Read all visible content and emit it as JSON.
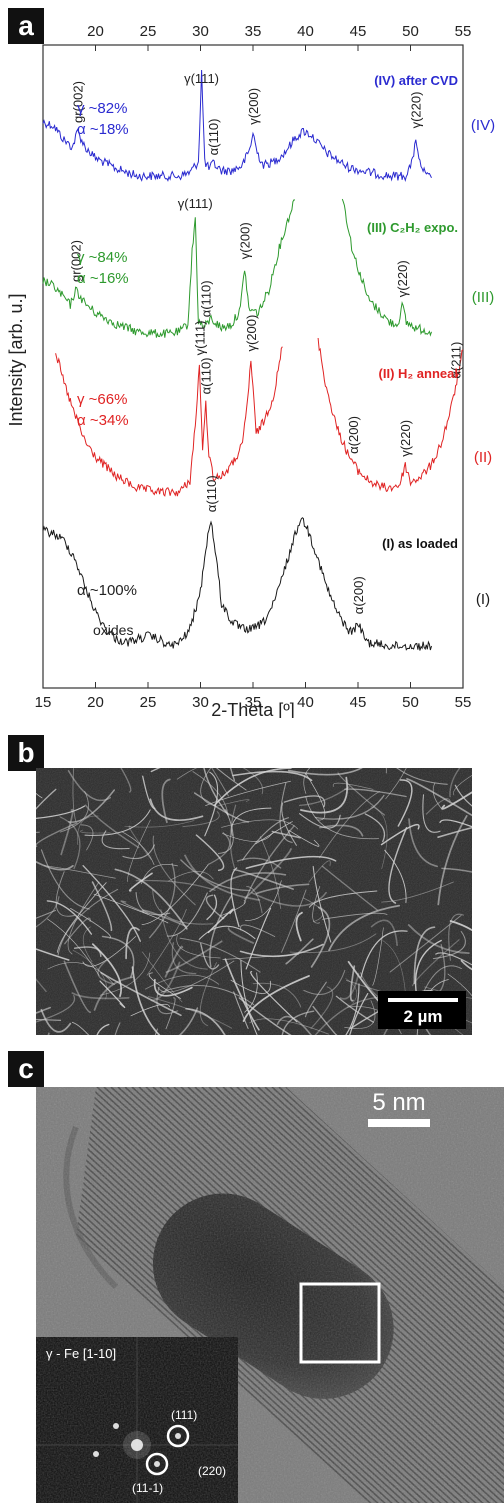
{
  "panels": {
    "a": "a",
    "b": "b",
    "c": "c"
  },
  "chart_data": {
    "type": "line",
    "xlabel": "2-Theta [º]",
    "ylabel": "Intensity [arb. u.]",
    "xlim": [
      15,
      55
    ],
    "xticks": [
      "15",
      "20",
      "25",
      "30",
      "35",
      "40",
      "45",
      "50",
      "55"
    ],
    "grid": false,
    "series": [
      {
        "name": "(IV) after CVD",
        "roman": "(IV)",
        "color": "#2b2bd0",
        "phase_lines": [
          "γ ~82%",
          "α ~18%"
        ],
        "x": [
          15,
          16,
          17,
          17.8,
          18.3,
          19,
          20,
          22,
          24,
          26,
          28,
          29,
          29.8,
          30.1,
          30.4,
          30.8,
          31.2,
          32,
          33,
          34,
          34.7,
          35,
          35.4,
          36,
          37,
          38,
          39,
          39.8,
          40.5,
          42,
          44,
          46,
          48,
          49.5,
          50.2,
          50.5,
          50.8,
          51.5,
          52
        ],
        "y": [
          0.6,
          0.58,
          0.5,
          0.46,
          0.55,
          0.46,
          0.4,
          0.34,
          0.3,
          0.3,
          0.3,
          0.32,
          0.38,
          0.88,
          0.38,
          0.34,
          0.37,
          0.33,
          0.33,
          0.36,
          0.45,
          0.54,
          0.43,
          0.36,
          0.38,
          0.43,
          0.51,
          0.55,
          0.53,
          0.43,
          0.35,
          0.32,
          0.3,
          0.3,
          0.38,
          0.52,
          0.38,
          0.3,
          0.29
        ]
      },
      {
        "name": "(III) C₂H₂ expo.",
        "roman": "(III)",
        "color": "#2e9a2e",
        "phase_lines": [
          "γ ~84%",
          "α ~16%"
        ],
        "x": [
          15,
          16,
          17,
          17.6,
          18.1,
          19,
          20,
          22,
          24,
          26,
          27,
          28,
          28.8,
          29.2,
          29.5,
          29.8,
          30.3,
          31,
          32,
          33,
          33.8,
          34.2,
          34.6,
          35.5,
          36.5,
          37.5,
          38.5,
          39.1,
          43.5,
          44.5,
          46,
          48,
          48.8,
          49.2,
          49.6,
          50.5,
          52
        ],
        "y": [
          0.55,
          0.52,
          0.46,
          0.42,
          0.5,
          0.43,
          0.38,
          0.32,
          0.28,
          0.27,
          0.27,
          0.28,
          0.32,
          0.7,
          0.88,
          0.34,
          0.3,
          0.35,
          0.3,
          0.32,
          0.4,
          0.62,
          0.4,
          0.38,
          0.5,
          0.72,
          0.9,
          1.0,
          1.0,
          0.7,
          0.45,
          0.33,
          0.32,
          0.42,
          0.33,
          0.3,
          0.28
        ]
      },
      {
        "name": "(II) H₂ anneal",
        "roman": "(II)",
        "color": "#e02424",
        "phase_lines": [
          "γ ~66%",
          "α ~34%"
        ],
        "x": [
          16.2,
          17,
          18,
          19,
          20,
          22,
          24,
          26,
          28,
          29,
          29.6,
          29.9,
          30.2,
          30.5,
          30.8,
          31.2,
          32,
          33,
          34,
          34.5,
          34.8,
          35.3,
          36,
          37,
          37.9,
          41.2,
          42,
          43,
          44,
          45,
          46,
          47,
          48,
          49,
          49.5,
          50,
          51,
          52,
          53,
          54,
          55
        ],
        "y": [
          0.94,
          0.78,
          0.62,
          0.48,
          0.4,
          0.3,
          0.24,
          0.22,
          0.22,
          0.28,
          0.62,
          0.88,
          0.42,
          0.68,
          0.42,
          0.3,
          0.3,
          0.36,
          0.46,
          0.7,
          0.9,
          0.52,
          0.58,
          0.72,
          1.0,
          1.0,
          0.75,
          0.55,
          0.42,
          0.33,
          0.28,
          0.25,
          0.24,
          0.26,
          0.36,
          0.27,
          0.3,
          0.36,
          0.48,
          0.68,
          0.95
        ]
      },
      {
        "name": "(I) as loaded",
        "roman": "(I)",
        "color": "#1a1a1a",
        "phase_lines": [
          "α ~100%"
        ],
        "x": [
          15,
          16,
          17,
          18,
          19,
          20,
          21,
          22,
          23,
          24,
          25,
          26,
          27,
          28,
          29,
          30,
          30.5,
          31,
          31.5,
          32,
          33,
          34,
          35,
          36,
          37,
          38,
          39,
          39.5,
          40,
          41,
          42,
          43,
          44,
          44.5,
          45,
          45.5,
          46,
          48,
          50,
          52
        ],
        "y": [
          0.88,
          0.86,
          0.82,
          0.72,
          0.55,
          0.4,
          0.3,
          0.24,
          0.22,
          0.24,
          0.26,
          0.24,
          0.2,
          0.22,
          0.3,
          0.52,
          0.78,
          0.94,
          0.72,
          0.45,
          0.34,
          0.3,
          0.3,
          0.34,
          0.45,
          0.65,
          0.85,
          0.95,
          0.92,
          0.75,
          0.55,
          0.4,
          0.3,
          0.28,
          0.34,
          0.26,
          0.22,
          0.2,
          0.2,
          0.2
        ]
      }
    ],
    "peak_labels": [
      {
        "text": "gr(002)",
        "series": 0,
        "x": 18.3,
        "rotated": true
      },
      {
        "text": "γ(111)",
        "series": 0,
        "x": 30.1,
        "rotated": false
      },
      {
        "text": "α(110)",
        "series": 0,
        "x": 31.2,
        "rotated": true
      },
      {
        "text": "γ(200)",
        "series": 0,
        "x": 35.0,
        "rotated": true
      },
      {
        "text": "γ(220)",
        "series": 0,
        "x": 50.5,
        "rotated": true
      },
      {
        "text": "gr(002)",
        "series": 1,
        "x": 18.1,
        "rotated": true
      },
      {
        "text": "γ(111)",
        "series": 1,
        "x": 29.5,
        "rotated": false
      },
      {
        "text": "α(110)",
        "series": 1,
        "x": 30.5,
        "rotated": true
      },
      {
        "text": "γ(200)",
        "series": 1,
        "x": 34.2,
        "rotated": true
      },
      {
        "text": "γ(220)",
        "series": 1,
        "x": 49.2,
        "rotated": true
      },
      {
        "text": "γ(111)",
        "series": 2,
        "x": 29.9,
        "rotated": true
      },
      {
        "text": "α(110)",
        "series": 2,
        "x": 30.5,
        "rotated": true
      },
      {
        "text": "γ(200)",
        "series": 2,
        "x": 34.8,
        "rotated": true
      },
      {
        "text": "α(200)",
        "series": 2,
        "x": 44.5,
        "rotated": true
      },
      {
        "text": "γ(220)",
        "series": 2,
        "x": 49.5,
        "rotated": true
      },
      {
        "text": "α(211)",
        "series": 2,
        "x": 54.3,
        "rotated": true
      },
      {
        "text": "α(110)",
        "series": 3,
        "x": 31.0,
        "rotated": true
      },
      {
        "text": "α(200)",
        "series": 3,
        "x": 45.0,
        "rotated": true
      }
    ],
    "annotations": [
      "oxides"
    ]
  },
  "sem": {
    "scalebar": "2 µm"
  },
  "tem": {
    "scalebar": "5 nm",
    "fft_title": "γ - Fe [1-10]",
    "spots": [
      "(111)",
      "(11-1)",
      "(220)"
    ]
  }
}
